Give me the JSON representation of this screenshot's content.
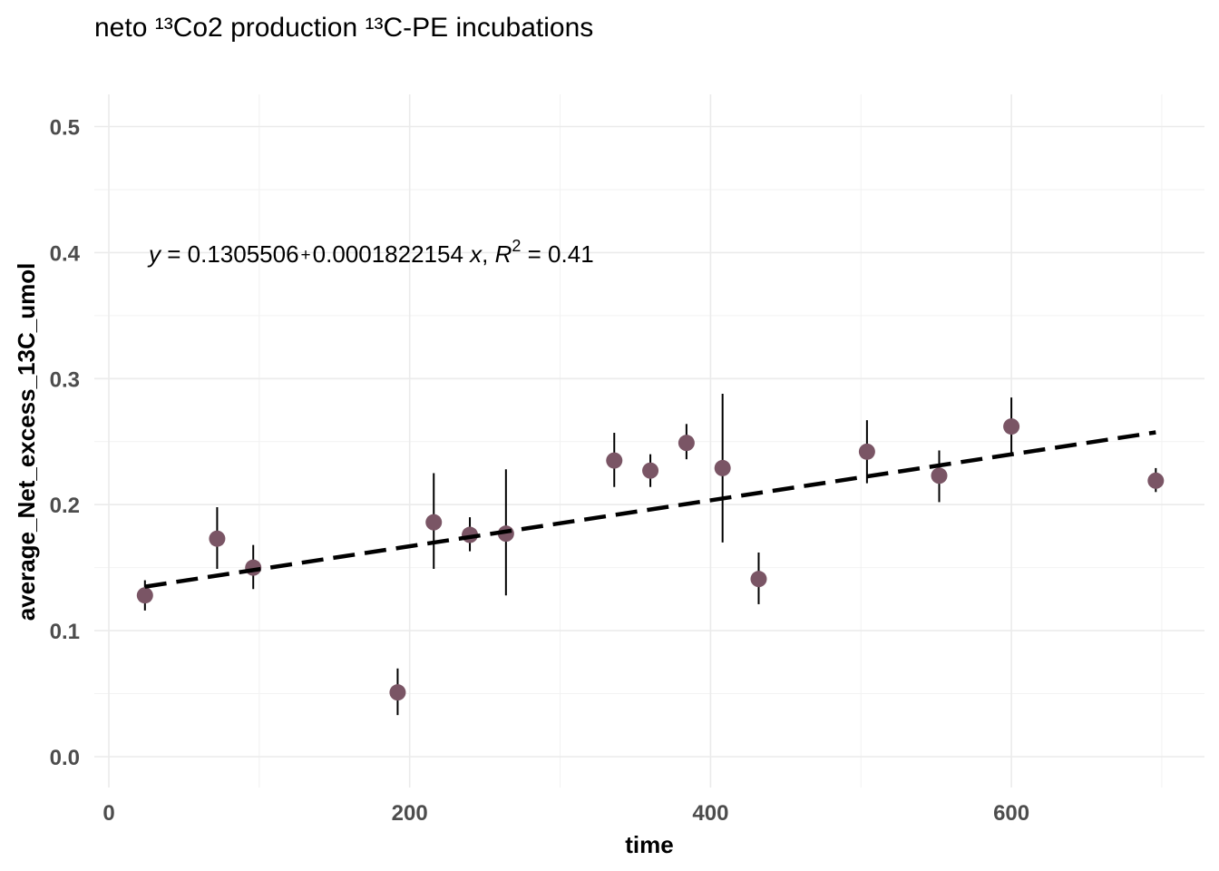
{
  "chart_data": {
    "type": "scatter",
    "title": "neto ¹³Co2 production ¹³C-PE incubations",
    "xlabel": "time",
    "ylabel": "average_Net_excess_13C_umol",
    "xlim": [
      0,
      720
    ],
    "ylim": [
      0,
      0.5
    ],
    "x_ticks": [
      0,
      200,
      400,
      600
    ],
    "x_tick_labels": [
      "0",
      "200",
      "400",
      "600"
    ],
    "y_ticks": [
      0.0,
      0.1,
      0.2,
      0.3,
      0.4,
      0.5
    ],
    "y_tick_labels": [
      "0.0",
      "0.1",
      "0.2",
      "0.3",
      "0.4",
      "0.5"
    ],
    "grid": true,
    "point_color": "#7a5565",
    "line_color": "#000000",
    "points": [
      {
        "x": 24,
        "y": 0.128,
        "ymin": 0.116,
        "ymax": 0.14
      },
      {
        "x": 72,
        "y": 0.173,
        "ymin": 0.149,
        "ymax": 0.198
      },
      {
        "x": 96,
        "y": 0.15,
        "ymin": 0.133,
        "ymax": 0.168
      },
      {
        "x": 192,
        "y": 0.051,
        "ymin": 0.033,
        "ymax": 0.07
      },
      {
        "x": 216,
        "y": 0.186,
        "ymin": 0.149,
        "ymax": 0.225
      },
      {
        "x": 240,
        "y": 0.176,
        "ymin": 0.163,
        "ymax": 0.19
      },
      {
        "x": 264,
        "y": 0.177,
        "ymin": 0.128,
        "ymax": 0.228
      },
      {
        "x": 336,
        "y": 0.235,
        "ymin": 0.214,
        "ymax": 0.257
      },
      {
        "x": 360,
        "y": 0.227,
        "ymin": 0.214,
        "ymax": 0.24
      },
      {
        "x": 384,
        "y": 0.249,
        "ymin": 0.236,
        "ymax": 0.264
      },
      {
        "x": 408,
        "y": 0.229,
        "ymin": 0.17,
        "ymax": 0.288
      },
      {
        "x": 432,
        "y": 0.141,
        "ymin": 0.121,
        "ymax": 0.162
      },
      {
        "x": 504,
        "y": 0.242,
        "ymin": 0.217,
        "ymax": 0.267
      },
      {
        "x": 552,
        "y": 0.223,
        "ymin": 0.202,
        "ymax": 0.243
      },
      {
        "x": 600,
        "y": 0.262,
        "ymin": 0.239,
        "ymax": 0.285
      },
      {
        "x": 696,
        "y": 0.219,
        "ymin": 0.21,
        "ymax": 0.229
      }
    ],
    "fit": {
      "intercept": 0.1305506,
      "slope": 0.0001822154,
      "x_range": [
        24,
        696
      ],
      "style": "dashed"
    },
    "annotation": {
      "y_sym": "y",
      "eq_a": " = 0.1305506",
      "plus": "+",
      "eq_b": "0.0001822154 ",
      "x_sym": "x",
      "comma": ", ",
      "r_sym": "R",
      "r_sup": "2",
      "r_val": " = 0.41"
    }
  }
}
